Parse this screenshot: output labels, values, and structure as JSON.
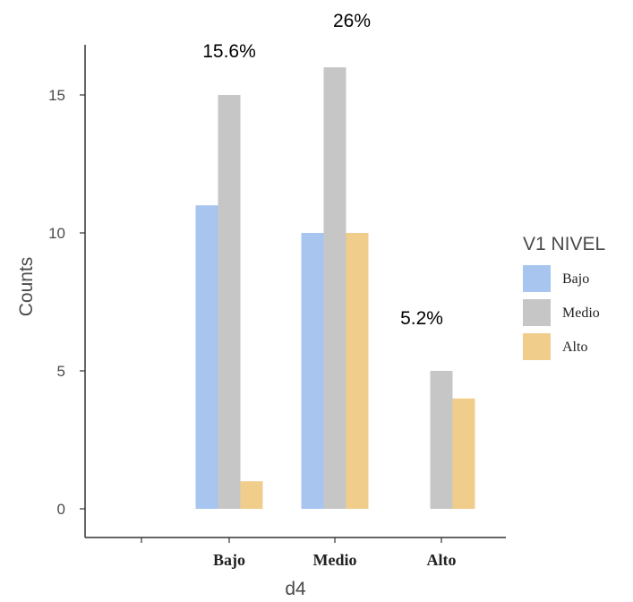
{
  "chart_data": {
    "type": "bar",
    "xlabel": "d4",
    "ylabel": "Counts",
    "categories": [
      "",
      "Bajo",
      "Medio",
      "Alto"
    ],
    "ylim": [
      0,
      17
    ],
    "yticks": [
      0,
      5,
      10,
      15
    ],
    "grid": false,
    "legend": {
      "title": "V1 NIVEL",
      "placement": "right"
    },
    "series": [
      {
        "name": "Bajo",
        "color": "#a8c5f0",
        "values": [
          0,
          11,
          10,
          0
        ]
      },
      {
        "name": "Medio",
        "color": "#c6c6c6",
        "values": [
          0,
          15,
          16,
          5
        ]
      },
      {
        "name": "Alto",
        "color": "#f1cd8c",
        "values": [
          0,
          1,
          10,
          4
        ]
      }
    ],
    "annotations": [
      {
        "text": "15.6%",
        "category": "Bajo"
      },
      {
        "text": "26%",
        "category": "Medio"
      },
      {
        "text": "5.2%",
        "category": "Alto"
      }
    ]
  }
}
